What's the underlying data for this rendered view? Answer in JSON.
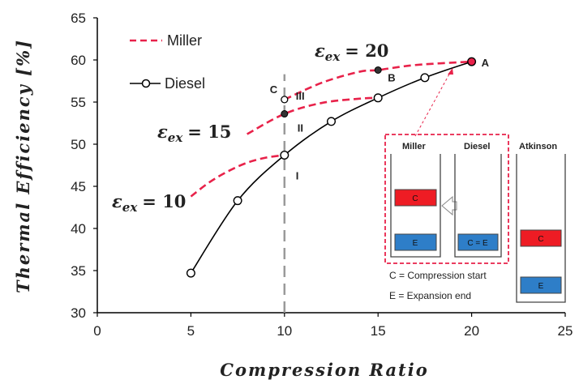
{
  "chart_data": {
    "type": "line",
    "xlabel": "Compression Ratio",
    "ylabel": "Thermal Efficiency [%]",
    "xlim": [
      0,
      25
    ],
    "ylim": [
      30,
      65
    ],
    "xticks": [
      "0",
      "5",
      "10",
      "15",
      "20",
      "25"
    ],
    "yticks": [
      "30",
      "35",
      "40",
      "45",
      "50",
      "55",
      "60",
      "65"
    ],
    "grid": false,
    "legend_position": "top-left",
    "series": [
      {
        "name": "Diesel",
        "style": "solid-line-open-circles",
        "color": "#000000",
        "x": [
          5,
          7.5,
          10,
          12.5,
          15,
          17.5,
          20
        ],
        "y": [
          34.7,
          43.3,
          48.7,
          52.7,
          55.5,
          57.9,
          59.8
        ]
      },
      {
        "name": "Miller",
        "style": "dashed",
        "color": "#e8224a",
        "curves": [
          {
            "label": "ε_ex = 10",
            "x": [
              5,
              6,
              7,
              8,
              9,
              10
            ],
            "y": [
              43.8,
              45.5,
              46.8,
              47.8,
              48.4,
              48.7
            ]
          },
          {
            "label": "ε_ex = 15",
            "x": [
              8,
              10,
              12,
              14,
              15
            ],
            "y": [
              51.2,
              53.6,
              54.9,
              55.4,
              55.5
            ]
          },
          {
            "label": "ε_ex = 20",
            "x": [
              10,
              12,
              14,
              15,
              17,
              20
            ],
            "y": [
              55.3,
              57.3,
              58.6,
              58.8,
              59.4,
              59.8
            ]
          }
        ]
      }
    ],
    "point_labels": [
      {
        "text": "A",
        "x": 20,
        "y": 59.8
      },
      {
        "text": "B",
        "x": 15,
        "y": 58.8
      },
      {
        "text": "C",
        "x": 10,
        "y": 55.3
      },
      {
        "text": "I",
        "x": 10,
        "y": 48.7
      },
      {
        "text": "II",
        "x": 10,
        "y": 53.6
      },
      {
        "text": "III",
        "x": 10,
        "y": 55.3
      }
    ],
    "reference_line": {
      "x": 10,
      "style": "dashed",
      "color": "#999999"
    },
    "annotations": {
      "eps_symbol": "ε",
      "eps_subscript": "ex",
      "eps_values": [
        "= 10",
        "= 15",
        "= 20"
      ]
    }
  },
  "legend": {
    "items": [
      {
        "label": "Miller"
      },
      {
        "label": "Diesel"
      }
    ]
  },
  "inset": {
    "miller_title": "Miller",
    "diesel_title": "Diesel",
    "atkinson_title": "Atkinson",
    "c_label": "C",
    "e_label": "E",
    "diesel_ce_label": "C = E",
    "note_c": "C = Compression start",
    "note_e": "E = Expansion end",
    "colors": {
      "red": "#ee1c24",
      "blue": "#2e7ec8",
      "dashed_border": "#e8224a"
    }
  }
}
